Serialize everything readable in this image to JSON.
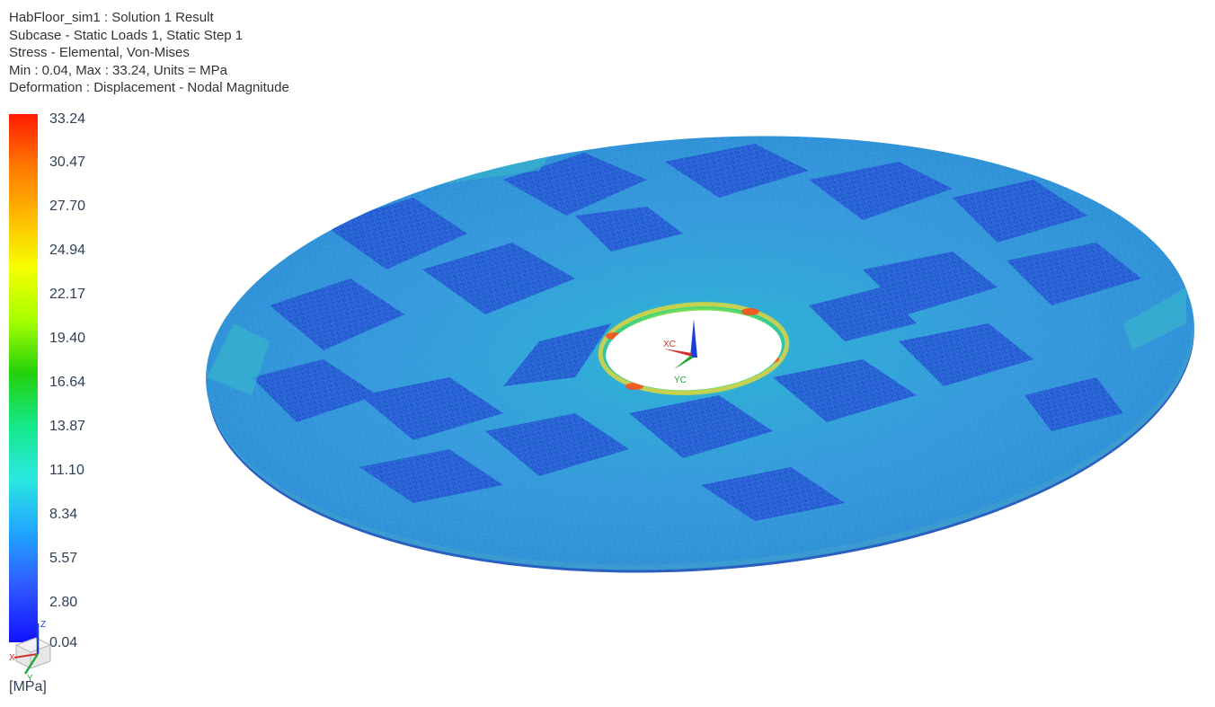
{
  "header": {
    "line1": "HabFloor_sim1 : Solution 1 Result",
    "line2": "Subcase - Static Loads 1, Static Step 1",
    "line3": "Stress - Elemental, Von-Mises",
    "line4": "Min : 0.04, Max : 33.24, Units = MPa",
    "line5": "Deformation : Displacement - Nodal Magnitude"
  },
  "legend": {
    "values": [
      "33.24",
      "30.47",
      "27.70",
      "24.94",
      "22.17",
      "19.40",
      "16.64",
      "13.87",
      "11.10",
      "8.34",
      "5.57",
      "2.80",
      "0.04"
    ],
    "units": "[MPa]"
  },
  "triad": {
    "small": {
      "z": "Z",
      "x": "X",
      "y": "Y"
    },
    "main": {
      "x": "XC",
      "y": "YC"
    }
  },
  "colors": {
    "max": "#ff1a00",
    "min": "#1111ff",
    "mesh_base": "#3a8ae8",
    "mesh_edge": "#2bd0c8"
  },
  "icons": {
    "small_triad": "coordinate-triad-icon",
    "main_triad": "work-coordinate-system-icon"
  }
}
